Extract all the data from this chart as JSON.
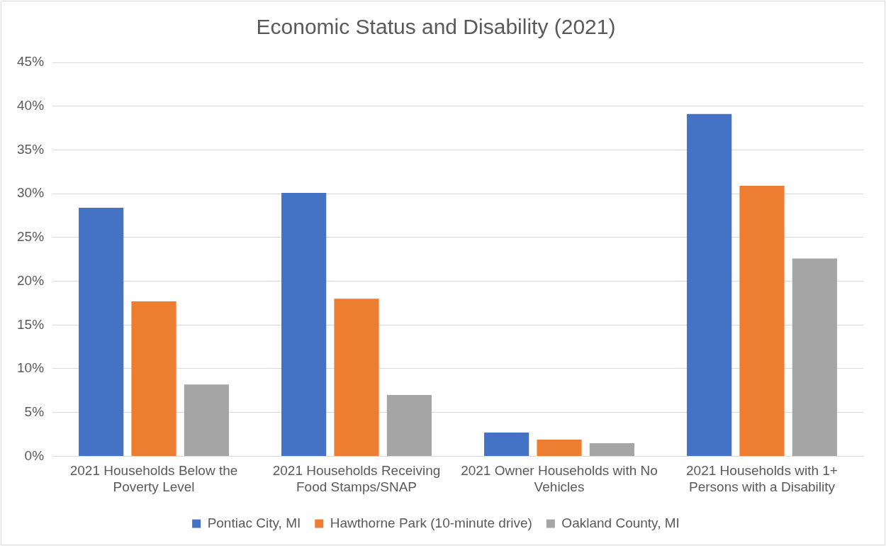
{
  "chart_data": {
    "type": "bar",
    "title": "Economic Status and Disability (2021)",
    "categories": [
      "2021 Households Below the Poverty Level",
      "2021 Households Receiving Food Stamps/SNAP",
      "2021 Owner Households with No Vehicles",
      "2021 Households with 1+ Persons with a Disability"
    ],
    "series": [
      {
        "name": "Pontiac City, MI",
        "color": "#4472c4",
        "values": [
          28.4,
          30.1,
          2.7,
          39.1
        ]
      },
      {
        "name": "Hawthorne Park (10-minute drive)",
        "color": "#ed7d31",
        "values": [
          17.7,
          18.0,
          1.9,
          30.9
        ]
      },
      {
        "name": "Oakland County, MI",
        "color": "#a5a5a5",
        "values": [
          8.2,
          7.0,
          1.5,
          22.6
        ]
      }
    ],
    "ylim": [
      0,
      45
    ],
    "yticks": [
      {
        "value": 0,
        "label": "0%"
      },
      {
        "value": 5,
        "label": "5%"
      },
      {
        "value": 10,
        "label": "10%"
      },
      {
        "value": 15,
        "label": "15%"
      },
      {
        "value": 20,
        "label": "20%"
      },
      {
        "value": 25,
        "label": "25%"
      },
      {
        "value": 30,
        "label": "30%"
      },
      {
        "value": 35,
        "label": "35%"
      },
      {
        "value": 40,
        "label": "40%"
      },
      {
        "value": 45,
        "label": "45%"
      }
    ],
    "grid": "y",
    "legend": "bottom"
  }
}
